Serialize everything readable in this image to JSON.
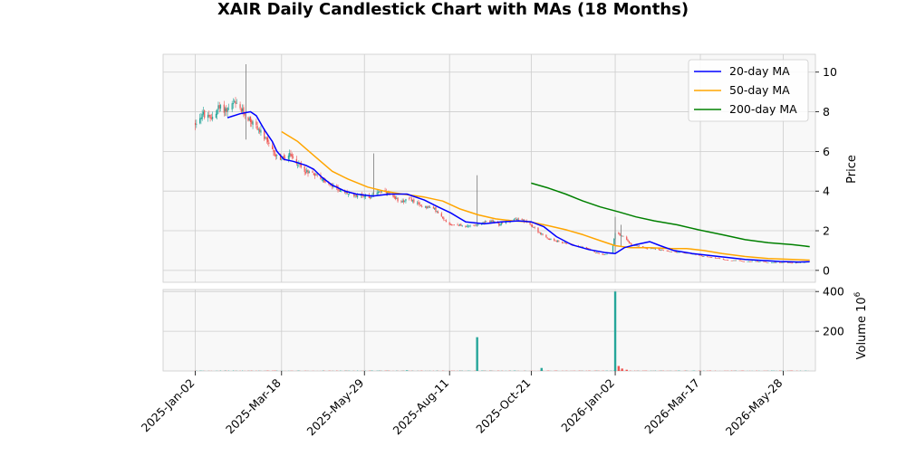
{
  "chart_data": {
    "type": "candlestick",
    "title": "XAIR Daily Candlestick Chart with MAs (18 Months)",
    "price_axis": {
      "label": "Price",
      "ylim": [
        -0.6,
        10.9
      ],
      "ticks": [
        0,
        2,
        4,
        6,
        8,
        10
      ],
      "position": "right"
    },
    "volume_axis": {
      "label": "Volume",
      "exponent_label": "10",
      "exponent_power": "6",
      "ylim": [
        0,
        410
      ],
      "ticks": [
        200,
        400
      ],
      "position": "right"
    },
    "x_axis": {
      "range": [
        "2024-12-05",
        "2026-06-25"
      ],
      "tick_dates": [
        "2025-01-02",
        "2025-03-18",
        "2025-05-29",
        "2025-08-11",
        "2025-10-21",
        "2026-01-02",
        "2026-03-17",
        "2026-05-28"
      ],
      "tick_labels": [
        "2025-Jan-02",
        "2025-Mar-18",
        "2025-May-29",
        "2025-Aug-11",
        "2025-Oct-21",
        "2026-Jan-02",
        "2026-Mar-17",
        "2026-May-28"
      ],
      "label_rotation": 45
    },
    "grid": true,
    "legend": {
      "placement": "top-right",
      "entries": [
        "20-day MA",
        "50-day MA",
        "200-day MA"
      ]
    },
    "colors": {
      "up": "#26a69a",
      "down": "#ef5350",
      "ma20": "#0000ff",
      "ma50": "#ffa500",
      "ma200": "#008000",
      "panel_bg": "#f8f8f8",
      "grid": "#cccccc"
    },
    "price_path": [
      [
        "2025-01-02",
        7.4
      ],
      [
        "2025-01-08",
        7.9
      ],
      [
        "2025-01-15",
        7.6
      ],
      [
        "2025-01-22",
        8.2
      ],
      [
        "2025-01-29",
        8.1
      ],
      [
        "2025-02-05",
        8.4
      ],
      [
        "2025-02-12",
        8.0
      ],
      [
        "2025-02-18",
        7.6
      ],
      [
        "2025-02-25",
        7.2
      ],
      [
        "2025-03-04",
        6.6
      ],
      [
        "2025-03-11",
        5.9
      ],
      [
        "2025-03-18",
        5.6
      ],
      [
        "2025-03-25",
        5.8
      ],
      [
        "2025-04-01",
        5.4
      ],
      [
        "2025-04-08",
        5.0
      ],
      [
        "2025-04-15",
        4.9
      ],
      [
        "2025-04-22",
        4.6
      ],
      [
        "2025-04-29",
        4.3
      ],
      [
        "2025-05-06",
        4.1
      ],
      [
        "2025-05-13",
        3.9
      ],
      [
        "2025-05-20",
        3.8
      ],
      [
        "2025-05-27",
        3.8
      ],
      [
        "2025-06-03",
        3.7
      ],
      [
        "2025-06-10",
        4.0
      ],
      [
        "2025-06-17",
        3.9
      ],
      [
        "2025-06-24",
        3.6
      ],
      [
        "2025-07-01",
        3.5
      ],
      [
        "2025-07-08",
        3.6
      ],
      [
        "2025-07-15",
        3.3
      ],
      [
        "2025-07-22",
        3.2
      ],
      [
        "2025-07-29",
        3.1
      ],
      [
        "2025-08-05",
        2.6
      ],
      [
        "2025-08-12",
        2.3
      ],
      [
        "2025-08-19",
        2.3
      ],
      [
        "2025-08-26",
        2.2
      ],
      [
        "2025-09-02",
        2.3
      ],
      [
        "2025-09-09",
        2.4
      ],
      [
        "2025-09-16",
        2.5
      ],
      [
        "2025-09-23",
        2.3
      ],
      [
        "2025-09-30",
        2.5
      ],
      [
        "2025-10-07",
        2.6
      ],
      [
        "2025-10-14",
        2.5
      ],
      [
        "2025-10-21",
        2.3
      ],
      [
        "2025-10-28",
        1.9
      ],
      [
        "2025-11-04",
        1.6
      ],
      [
        "2025-11-11",
        1.5
      ],
      [
        "2025-11-18",
        1.4
      ],
      [
        "2025-11-25",
        1.3
      ],
      [
        "2025-12-02",
        1.2
      ],
      [
        "2025-12-09",
        1.1
      ],
      [
        "2025-12-16",
        0.9
      ],
      [
        "2025-12-23",
        0.8
      ],
      [
        "2025-12-30",
        0.9
      ],
      [
        "2026-01-02",
        1.9
      ],
      [
        "2026-01-09",
        1.7
      ],
      [
        "2026-01-16",
        1.3
      ],
      [
        "2026-01-23",
        1.2
      ],
      [
        "2026-01-30",
        1.1
      ],
      [
        "2026-02-06",
        1.1
      ],
      [
        "2026-02-13",
        1.0
      ],
      [
        "2026-02-20",
        0.95
      ],
      [
        "2026-02-27",
        0.9
      ],
      [
        "2026-03-06",
        0.85
      ],
      [
        "2026-03-13",
        0.8
      ],
      [
        "2026-03-20",
        0.7
      ],
      [
        "2026-03-27",
        0.65
      ],
      [
        "2026-04-03",
        0.6
      ],
      [
        "2026-04-10",
        0.5
      ],
      [
        "2026-04-17",
        0.5
      ],
      [
        "2026-04-24",
        0.45
      ],
      [
        "2026-05-01",
        0.45
      ],
      [
        "2026-05-08",
        0.45
      ],
      [
        "2026-05-15",
        0.4
      ],
      [
        "2026-05-22",
        0.4
      ],
      [
        "2026-05-29",
        0.4
      ],
      [
        "2026-06-05",
        0.38
      ],
      [
        "2026-06-12",
        0.4
      ],
      [
        "2026-06-19",
        0.42
      ]
    ],
    "ma20": [
      [
        "2025-01-30",
        7.7
      ],
      [
        "2025-02-10",
        7.9
      ],
      [
        "2025-02-19",
        8.0
      ],
      [
        "2025-02-24",
        7.8
      ],
      [
        "2025-03-03",
        7.1
      ],
      [
        "2025-03-10",
        6.5
      ],
      [
        "2025-03-14",
        6.0
      ],
      [
        "2025-03-20",
        5.6
      ],
      [
        "2025-03-28",
        5.5
      ],
      [
        "2025-04-08",
        5.3
      ],
      [
        "2025-04-15",
        5.1
      ],
      [
        "2025-04-22",
        4.7
      ],
      [
        "2025-05-01",
        4.3
      ],
      [
        "2025-05-12",
        4.0
      ],
      [
        "2025-05-22",
        3.85
      ],
      [
        "2025-06-05",
        3.75
      ],
      [
        "2025-06-20",
        3.85
      ],
      [
        "2025-07-05",
        3.85
      ],
      [
        "2025-07-20",
        3.55
      ],
      [
        "2025-08-01",
        3.2
      ],
      [
        "2025-08-12",
        2.9
      ],
      [
        "2025-08-25",
        2.45
      ],
      [
        "2025-09-10",
        2.35
      ],
      [
        "2025-09-25",
        2.45
      ],
      [
        "2025-10-10",
        2.5
      ],
      [
        "2025-10-21",
        2.45
      ],
      [
        "2025-11-01",
        2.2
      ],
      [
        "2025-11-12",
        1.7
      ],
      [
        "2025-11-25",
        1.3
      ],
      [
        "2025-12-10",
        1.05
      ],
      [
        "2025-12-24",
        0.9
      ],
      [
        "2026-01-02",
        0.85
      ],
      [
        "2026-01-10",
        1.15
      ],
      [
        "2026-01-20",
        1.3
      ],
      [
        "2026-02-01",
        1.45
      ],
      [
        "2026-02-10",
        1.25
      ],
      [
        "2026-02-22",
        1.0
      ],
      [
        "2026-03-10",
        0.85
      ],
      [
        "2026-03-25",
        0.75
      ],
      [
        "2026-04-10",
        0.65
      ],
      [
        "2026-04-25",
        0.55
      ],
      [
        "2026-05-10",
        0.5
      ],
      [
        "2026-05-25",
        0.45
      ],
      [
        "2026-06-10",
        0.42
      ],
      [
        "2026-06-20",
        0.44
      ]
    ],
    "ma50": [
      [
        "2025-03-18",
        7.0
      ],
      [
        "2025-04-01",
        6.5
      ],
      [
        "2025-04-15",
        5.8
      ],
      [
        "2025-05-01",
        5.0
      ],
      [
        "2025-05-15",
        4.6
      ],
      [
        "2025-06-01",
        4.2
      ],
      [
        "2025-06-15",
        4.0
      ],
      [
        "2025-07-01",
        3.85
      ],
      [
        "2025-07-20",
        3.7
      ],
      [
        "2025-08-05",
        3.5
      ],
      [
        "2025-08-20",
        3.1
      ],
      [
        "2025-09-05",
        2.8
      ],
      [
        "2025-09-20",
        2.6
      ],
      [
        "2025-10-05",
        2.5
      ],
      [
        "2025-10-20",
        2.45
      ],
      [
        "2025-11-05",
        2.25
      ],
      [
        "2025-11-20",
        2.05
      ],
      [
        "2025-12-05",
        1.8
      ],
      [
        "2025-12-20",
        1.5
      ],
      [
        "2026-01-02",
        1.25
      ],
      [
        "2026-01-15",
        1.15
      ],
      [
        "2026-02-01",
        1.15
      ],
      [
        "2026-02-20",
        1.1
      ],
      [
        "2026-03-05",
        1.1
      ],
      [
        "2026-03-20",
        1.0
      ],
      [
        "2026-04-05",
        0.85
      ],
      [
        "2026-04-25",
        0.7
      ],
      [
        "2026-05-15",
        0.6
      ],
      [
        "2026-06-05",
        0.55
      ],
      [
        "2026-06-20",
        0.52
      ]
    ],
    "ma200": [
      [
        "2025-10-21",
        4.4
      ],
      [
        "2025-11-05",
        4.15
      ],
      [
        "2025-11-20",
        3.85
      ],
      [
        "2025-12-05",
        3.5
      ],
      [
        "2025-12-20",
        3.2
      ],
      [
        "2026-01-05",
        2.95
      ],
      [
        "2026-01-20",
        2.7
      ],
      [
        "2026-02-05",
        2.5
      ],
      [
        "2026-02-25",
        2.3
      ],
      [
        "2026-03-15",
        2.05
      ],
      [
        "2026-04-05",
        1.8
      ],
      [
        "2026-04-25",
        1.55
      ],
      [
        "2026-05-15",
        1.4
      ],
      [
        "2026-06-05",
        1.3
      ],
      [
        "2026-06-20",
        1.2
      ]
    ],
    "volume_spikes": [
      [
        "2025-07-05",
        3
      ],
      [
        "2025-09-04",
        170
      ],
      [
        "2025-10-30",
        15
      ],
      [
        "2026-01-02",
        400
      ],
      [
        "2026-01-05",
        25
      ],
      [
        "2026-01-08",
        12
      ],
      [
        "2026-01-12",
        6
      ]
    ],
    "price_spikes": [
      [
        "2025-02-15",
        10.4,
        6.6
      ],
      [
        "2025-06-06",
        5.9,
        3.7
      ],
      [
        "2025-09-04",
        4.8,
        2.2
      ],
      [
        "2026-01-02",
        2.7,
        0.9
      ],
      [
        "2026-01-07",
        2.3,
        1.2
      ]
    ]
  }
}
